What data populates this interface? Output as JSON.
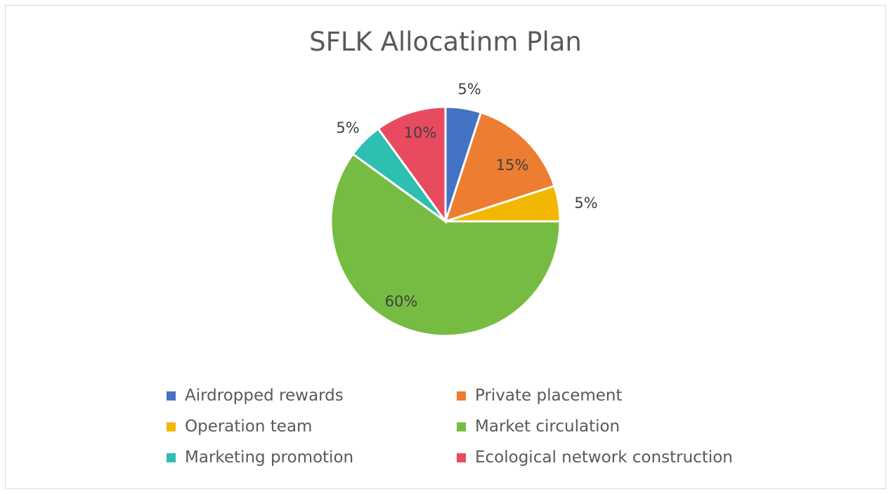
{
  "chart_data": {
    "type": "pie",
    "title": "SFLK Allocatinm Plan",
    "categories": [
      "Airdropped rewards",
      "Private placement",
      "Operation team",
      "Market circulation",
      "Marketing promotion",
      "Ecological network construction"
    ],
    "values": [
      5,
      15,
      5,
      60,
      5,
      10
    ],
    "data_labels": [
      "5%",
      "15%",
      "5%",
      "60%",
      "5%",
      "10%"
    ],
    "colors": [
      "#4472C4",
      "#ED7D31",
      "#F2B700",
      "#76BC43",
      "#2DBFB2",
      "#E84A5F"
    ],
    "legend_placement": "bottom",
    "start_angle": "top, clockwise"
  }
}
